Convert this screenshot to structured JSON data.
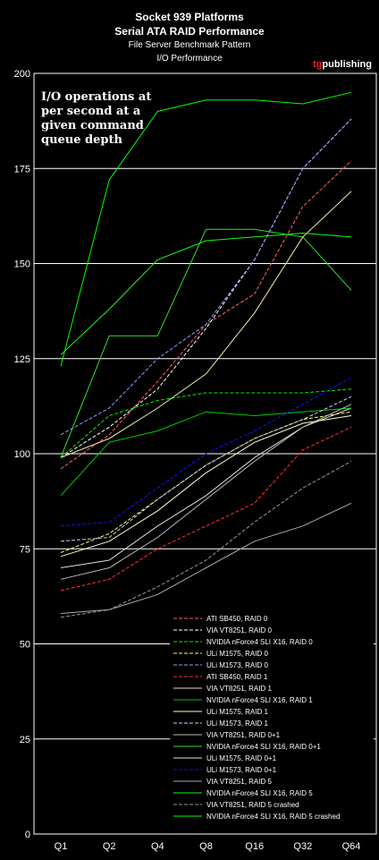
{
  "title_line1": "Socket 939 Platforms",
  "title_line2": "Serial ATA RAID Performance",
  "subtitle_line1": "File Server Benchmark Pattern",
  "subtitle_line2": "I/O Performance",
  "brand": {
    "prefix": "tg",
    "suffix": "publishing",
    "prefix_color": "#e0202a",
    "suffix_color": "#ffffff"
  },
  "annotation": [
    "I/O operations at",
    "per second at a",
    "given command",
    "queue depth"
  ],
  "chart_data": {
    "type": "line",
    "categories": [
      "Q1",
      "Q2",
      "Q4",
      "Q8",
      "Q16",
      "Q32",
      "Q64"
    ],
    "ylim": [
      0,
      200
    ],
    "yticks": [
      0,
      25,
      50,
      75,
      100,
      125,
      150,
      175,
      200
    ],
    "grid": true,
    "legend_position": "bottom-right",
    "series": [
      {
        "name": "ATI SB450, RAID 0",
        "color": "#ff6060",
        "dash": true,
        "values": [
          96,
          105,
          119,
          134,
          142,
          165,
          177
        ]
      },
      {
        "name": "VIA VT8251, RAID 0",
        "color": "#ffffff",
        "dash": true,
        "values": [
          99,
          107,
          117,
          133,
          151,
          175,
          188
        ]
      },
      {
        "name": "NVIDIA nForce4 SLI X16, RAID 0",
        "color": "#00ee00",
        "dash": true,
        "values": [
          99,
          110,
          114,
          116,
          116,
          116,
          117
        ]
      },
      {
        "name": "ULi M1575, RAID 0",
        "color": "#ffff66",
        "dash": true,
        "values": [
          74,
          79,
          88,
          97,
          104,
          109,
          111
        ]
      },
      {
        "name": "ULi M1573, RAID 0",
        "color": "#9999ff",
        "dash": true,
        "values": [
          105,
          112,
          125,
          134,
          151,
          175,
          188
        ]
      },
      {
        "name": "ATI SB450, RAID 1",
        "color": "#ff3333",
        "dash": true,
        "values": [
          64,
          67,
          75,
          81,
          87,
          101,
          107
        ]
      },
      {
        "name": "VIA VT8251, RAID 1",
        "color": "#dddddd",
        "dash": false,
        "values": [
          70,
          72,
          81,
          89,
          99,
          107,
          112
        ]
      },
      {
        "name": "NVIDIA nForce4 SLI X16, RAID 1",
        "color": "#00cc00",
        "dash": false,
        "values": [
          89,
          103,
          106,
          111,
          110,
          111,
          112
        ]
      },
      {
        "name": "ULi M1575, RAID 1",
        "color": "#ffffcc",
        "dash": false,
        "values": [
          73,
          77,
          85,
          95,
          103,
          108,
          110
        ]
      },
      {
        "name": "ULi M1573, RAID 1",
        "color": "#ccccff",
        "dash": true,
        "values": [
          77,
          78,
          88,
          97,
          104,
          109,
          115
        ]
      },
      {
        "name": "VIA VT8251, RAID 0+1",
        "color": "#bbbbbb",
        "dash": false,
        "values": [
          67,
          70,
          78,
          88,
          98,
          107,
          113
        ]
      },
      {
        "name": "NVIDIA nForce4 SLI X16, RAID 0+1",
        "color": "#33dd33",
        "dash": false,
        "values": [
          99,
          131,
          131,
          159,
          159,
          157,
          143
        ]
      },
      {
        "name": "ULi M1575, RAID 0+1",
        "color": "#eeeeaa",
        "dash": false,
        "values": [
          99,
          104,
          112,
          121,
          137,
          157,
          169
        ]
      },
      {
        "name": "ULi M1573, RAID 0+1",
        "color": "#1111ff",
        "dash": true,
        "values": [
          81,
          82,
          91,
          100,
          106,
          113,
          120
        ]
      },
      {
        "name": "VIA VT8251, RAID 5",
        "color": "#aaaaaa",
        "dash": false,
        "values": [
          58,
          59,
          63,
          70,
          77,
          81,
          87
        ]
      },
      {
        "name": "NVIDIA nForce4 SLI X16, RAID 5",
        "color": "#11ff11",
        "dash": false,
        "values": [
          126,
          138,
          151,
          156,
          157,
          158,
          157
        ]
      },
      {
        "name": "VIA VT8251, RAID 5 crashed",
        "color": "#999999",
        "dash": true,
        "values": [
          57,
          59,
          65,
          72,
          82,
          91,
          98
        ]
      },
      {
        "name": "NVIDIA nForce4 SLI X16, RAID 5 crashed",
        "color": "#00ff00",
        "dash": false,
        "values": [
          123,
          172,
          190,
          193,
          193,
          192,
          195
        ]
      }
    ]
  }
}
